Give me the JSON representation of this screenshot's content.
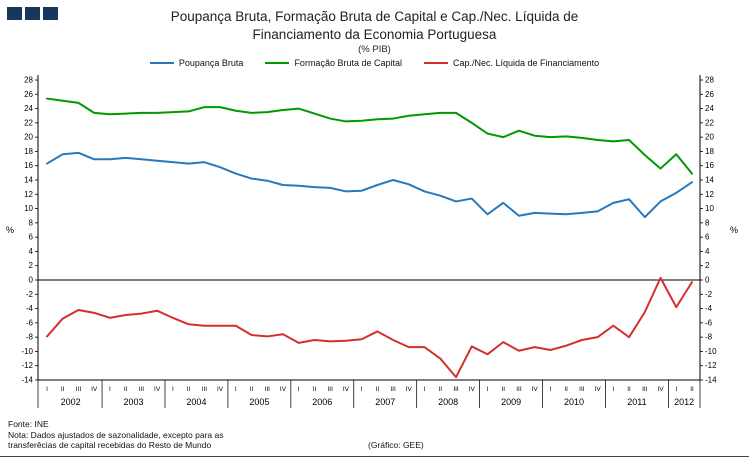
{
  "logo": {
    "name": "three-squares-logo",
    "color": "#17375D",
    "square_count": 3
  },
  "header": {
    "title_line1": "Poupança Bruta, Formação Bruta de Capital e Cap./Nec. Líquida de",
    "title_line2": "Financiamento da Economia Portuguesa",
    "subtitle": "(% PIB)"
  },
  "footer": {
    "source": "Fonte: INE",
    "note_line1": "Nota: Dados ajustados de sazonalidade, excepto para as",
    "note_line2": "transferêcias de capital recebidas do Resto de Mundo",
    "credit": "(Gráfico: GEE)"
  },
  "chart_data": {
    "type": "line",
    "title": "Poupança Bruta, Formação Bruta de Capital e Cap./Nec. Líquida de Financiamento da Economia Portuguesa",
    "subtitle": "(% PIB)",
    "ylabel_left": "%",
    "ylabel_right": "%",
    "ylim": [
      -14,
      28
    ],
    "ytick_step": 2,
    "grid": false,
    "legend_position": "top",
    "x_labels": [
      "I",
      "II",
      "III",
      "IV",
      "I",
      "II",
      "III",
      "IV",
      "I",
      "II",
      "III",
      "IV",
      "I",
      "II",
      "III",
      "IV",
      "I",
      "II",
      "III",
      "IV",
      "I",
      "II",
      "III",
      "IV",
      "I",
      "II",
      "III",
      "IV",
      "I",
      "II",
      "III",
      "IV",
      "I",
      "II",
      "III",
      "IV",
      "I",
      "II",
      "III",
      "IV",
      "I",
      "II"
    ],
    "x_groups": [
      {
        "year": "2002",
        "count": 4
      },
      {
        "year": "2003",
        "count": 4
      },
      {
        "year": "2004",
        "count": 4
      },
      {
        "year": "2005",
        "count": 4
      },
      {
        "year": "2006",
        "count": 4
      },
      {
        "year": "2007",
        "count": 4
      },
      {
        "year": "2008",
        "count": 4
      },
      {
        "year": "2009",
        "count": 4
      },
      {
        "year": "2010",
        "count": 4
      },
      {
        "year": "2011",
        "count": 4
      },
      {
        "year": "2012",
        "count": 2
      }
    ],
    "series": [
      {
        "name": "Poupança Bruta",
        "color": "#2878BD",
        "values": [
          16.3,
          17.6,
          17.8,
          16.9,
          16.9,
          17.1,
          16.9,
          16.7,
          16.5,
          16.3,
          16.5,
          15.8,
          14.9,
          14.2,
          13.9,
          13.3,
          13.2,
          13.0,
          12.9,
          12.4,
          12.5,
          13.3,
          14.0,
          13.4,
          12.4,
          11.8,
          11.0,
          11.4,
          9.2,
          10.8,
          9.0,
          9.4,
          9.3,
          9.2,
          9.4,
          9.6,
          10.8,
          11.3,
          8.8,
          11.0,
          12.2,
          13.7
        ]
      },
      {
        "name": "Formação Bruta de Capital",
        "color": "#009900",
        "values": [
          25.4,
          25.1,
          24.8,
          23.4,
          23.2,
          23.3,
          23.4,
          23.4,
          23.5,
          23.6,
          24.2,
          24.2,
          23.7,
          23.4,
          23.5,
          23.8,
          24.0,
          23.3,
          22.6,
          22.2,
          22.3,
          22.5,
          22.6,
          23.0,
          23.2,
          23.4,
          23.4,
          22.0,
          20.5,
          20.0,
          20.9,
          20.2,
          20.0,
          20.1,
          19.9,
          19.6,
          19.4,
          19.6,
          17.5,
          15.6,
          17.6,
          14.9
        ]
      },
      {
        "name": "Cap./Nec. Líquida de Financiamento",
        "color": "#D32F2F",
        "values": [
          -7.9,
          -5.4,
          -4.2,
          -4.6,
          -5.3,
          -4.9,
          -4.7,
          -4.3,
          -5.3,
          -6.2,
          -6.4,
          -6.4,
          -6.4,
          -7.7,
          -7.9,
          -7.6,
          -8.8,
          -8.4,
          -8.6,
          -8.5,
          -8.3,
          -7.2,
          -8.4,
          -9.4,
          -9.4,
          -11.0,
          -13.6,
          -9.3,
          -10.4,
          -8.7,
          -9.9,
          -9.4,
          -9.8,
          -9.2,
          -8.4,
          -8.0,
          -6.4,
          -8.0,
          -4.5,
          0.3,
          -3.8,
          -0.3
        ]
      }
    ]
  }
}
